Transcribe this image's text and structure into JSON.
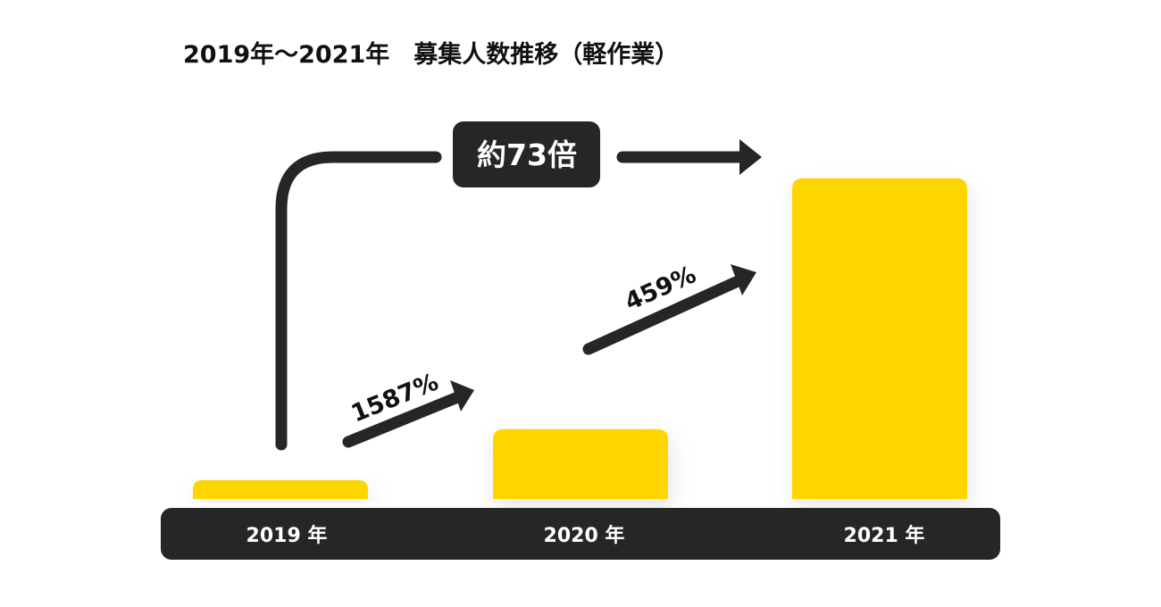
{
  "chart_data": {
    "type": "bar",
    "title": "2019年〜2021年　募集人数推移（軽作業）",
    "categories": [
      "2019 年",
      "2020 年",
      "2021 年"
    ],
    "values": [
      1,
      15.87,
      72.84
    ],
    "value_unit": "relative (2019 = 1)",
    "ylim": [
      0,
      73
    ],
    "axis_labels_shown": false,
    "grid": false,
    "annotations": {
      "growth": [
        {
          "from": "2019 年",
          "to": "2020 年",
          "label": "1587%"
        },
        {
          "from": "2020 年",
          "to": "2021 年",
          "label": "459%"
        }
      ],
      "overall": {
        "from": "2019 年",
        "to": "2021 年",
        "label": "約73倍"
      }
    }
  },
  "colors": {
    "bar": "#FDD600",
    "dark": "#262626",
    "text": "#111111",
    "label_text": "#FFFFFF",
    "background": "#FFFFFF"
  }
}
